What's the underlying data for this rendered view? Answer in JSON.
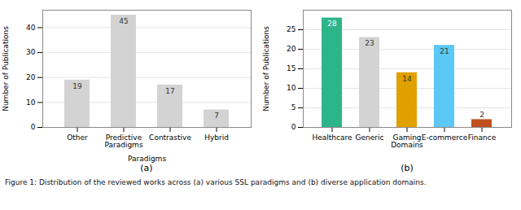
{
  "chart_data": [
    {
      "type": "bar",
      "title": "(a)",
      "categories": [
        "Other",
        "Predictive\nParadigms",
        "Contrastive",
        "Hybrid"
      ],
      "values": [
        19,
        45,
        17,
        7
      ],
      "color": "#d3d3d3",
      "xlabel": "Paradigms",
      "ylabel": "Number of Publications",
      "ylim": [
        0,
        47
      ],
      "yticks": [
        0,
        10,
        20,
        30,
        40
      ],
      "grid": true,
      "data_labels": true
    },
    {
      "type": "bar",
      "title": "(b)",
      "categories": [
        "Healthcare",
        "Generic",
        "Gaming\nDomains",
        "E-commerce",
        "Finance"
      ],
      "values": [
        28,
        23,
        14,
        21,
        2
      ],
      "colors": [
        "#2db58a",
        "#d3d3d3",
        "#e0a000",
        "#5bc8f5",
        "#c05020"
      ],
      "ylabel": "Number of Publications",
      "ylim": [
        0,
        30
      ],
      "yticks": [
        0,
        5,
        10,
        15,
        20,
        25
      ],
      "grid": true,
      "data_labels": true
    }
  ],
  "caption": "Figure 1: Distribution of the reviewed works across (a) various SSL paradigms and (b) diverse application domains."
}
